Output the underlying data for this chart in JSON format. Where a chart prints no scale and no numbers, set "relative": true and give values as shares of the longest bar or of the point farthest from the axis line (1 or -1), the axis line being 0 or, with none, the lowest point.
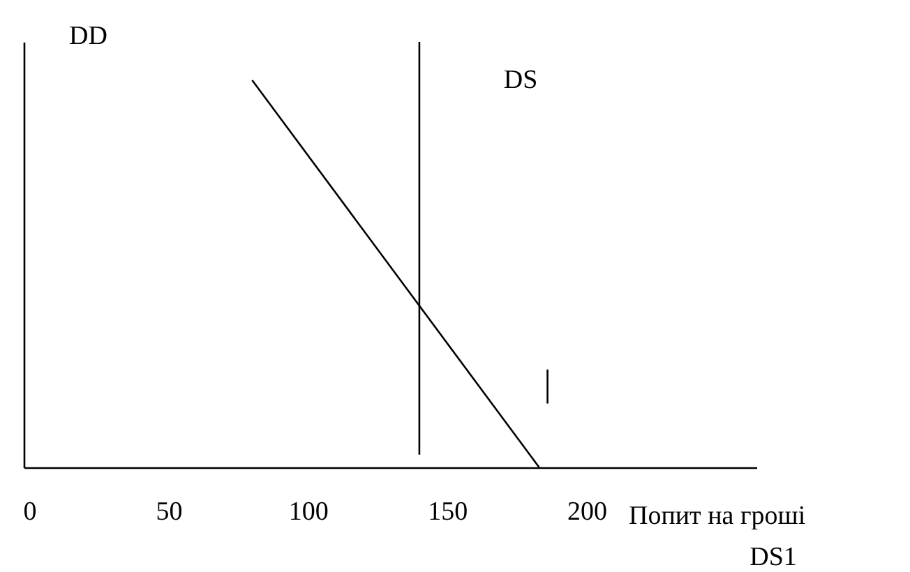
{
  "chart_data": {
    "type": "line",
    "relative": true,
    "xlabel": "Попит на гроші",
    "ylabel": "DD",
    "xlim": [
      -2,
      261
    ],
    "xticks": [
      0,
      50,
      100,
      150,
      200
    ],
    "series": [
      {
        "color": "#000000",
        "x": [
          80,
          183
        ],
        "values": [
          0.91,
          0
        ]
      },
      {
        "color": "#000000",
        "x": [
          140,
          140
        ],
        "values": [
          1,
          0.03
        ]
      },
      {
        "color": "#000000",
        "x": [
          186,
          186
        ],
        "values": [
          0.23,
          0.15
        ]
      }
    ],
    "annotations": [
      "DS",
      "DS1"
    ],
    "line_style": "solid",
    "marker": "none"
  }
}
